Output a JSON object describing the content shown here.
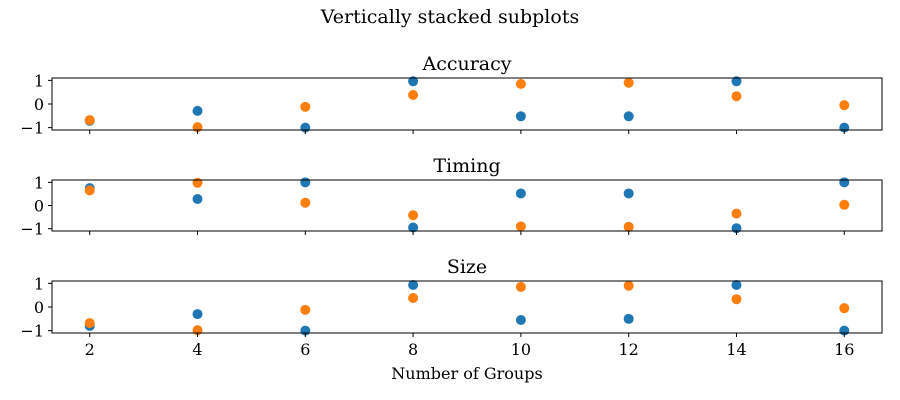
{
  "figure": {
    "suptitle": "Vertically stacked subplots"
  },
  "colors": {
    "series_a": "#1f77b4",
    "series_b": "#ff7f0e"
  },
  "chart_data": [
    {
      "type": "scatter",
      "title": "Accuracy",
      "xlabel": "",
      "ylabel": "",
      "xlim": [
        1.3,
        16.7
      ],
      "ylim": [
        -1.1,
        1.1
      ],
      "x_ticks": [
        2,
        4,
        6,
        8,
        10,
        12,
        14,
        16
      ],
      "x_tick_labels_visible": false,
      "y_ticks": [
        -1,
        0,
        1
      ],
      "y_tick_labels": [
        "−1",
        "0",
        "1"
      ],
      "grid": false,
      "series": [
        {
          "x": [
            2,
            4,
            6,
            8,
            10,
            12,
            14,
            16
          ],
          "y": [
            -0.71,
            -0.29,
            -1.0,
            0.96,
            -0.52,
            -0.52,
            0.96,
            -1.0
          ]
        },
        {
          "x": [
            2,
            4,
            6,
            8,
            10,
            12,
            14,
            16
          ],
          "y": [
            -0.68,
            -0.98,
            -0.12,
            0.38,
            0.85,
            0.9,
            0.33,
            -0.05
          ]
        }
      ]
    },
    {
      "type": "scatter",
      "title": "Timing",
      "xlabel": "",
      "ylabel": "",
      "xlim": [
        1.3,
        16.7
      ],
      "ylim": [
        -1.1,
        1.1
      ],
      "x_ticks": [
        2,
        4,
        6,
        8,
        10,
        12,
        14,
        16
      ],
      "x_tick_labels_visible": false,
      "y_ticks": [
        -1,
        0,
        1
      ],
      "y_tick_labels": [
        "−1",
        "0",
        "1"
      ],
      "grid": false,
      "series": [
        {
          "x": [
            2,
            4,
            6,
            8,
            10,
            12,
            14,
            16
          ],
          "y": [
            0.75,
            0.28,
            1.0,
            -0.95,
            0.52,
            0.52,
            -0.98,
            1.0
          ]
        },
        {
          "x": [
            2,
            4,
            6,
            8,
            10,
            12,
            14,
            16
          ],
          "y": [
            0.65,
            0.98,
            0.12,
            -0.42,
            -0.9,
            -0.92,
            -0.35,
            0.03
          ]
        }
      ]
    },
    {
      "type": "scatter",
      "title": "Size",
      "xlabel": "Number of Groups",
      "ylabel": "",
      "xlim": [
        1.3,
        16.7
      ],
      "ylim": [
        -1.1,
        1.1
      ],
      "x_ticks": [
        2,
        4,
        6,
        8,
        10,
        12,
        14,
        16
      ],
      "x_tick_labels_visible": true,
      "x_tick_labels": [
        "2",
        "4",
        "6",
        "8",
        "10",
        "12",
        "14",
        "16"
      ],
      "y_ticks": [
        -1,
        0,
        1
      ],
      "y_tick_labels": [
        "−1",
        "0",
        "1"
      ],
      "grid": false,
      "series": [
        {
          "x": [
            2,
            4,
            6,
            8,
            10,
            12,
            14,
            16
          ],
          "y": [
            -0.8,
            -0.3,
            -1.0,
            0.93,
            -0.55,
            -0.5,
            0.93,
            -1.0
          ]
        },
        {
          "x": [
            2,
            4,
            6,
            8,
            10,
            12,
            14,
            16
          ],
          "y": [
            -0.68,
            -0.98,
            -0.12,
            0.38,
            0.85,
            0.9,
            0.33,
            -0.05
          ]
        }
      ]
    }
  ]
}
